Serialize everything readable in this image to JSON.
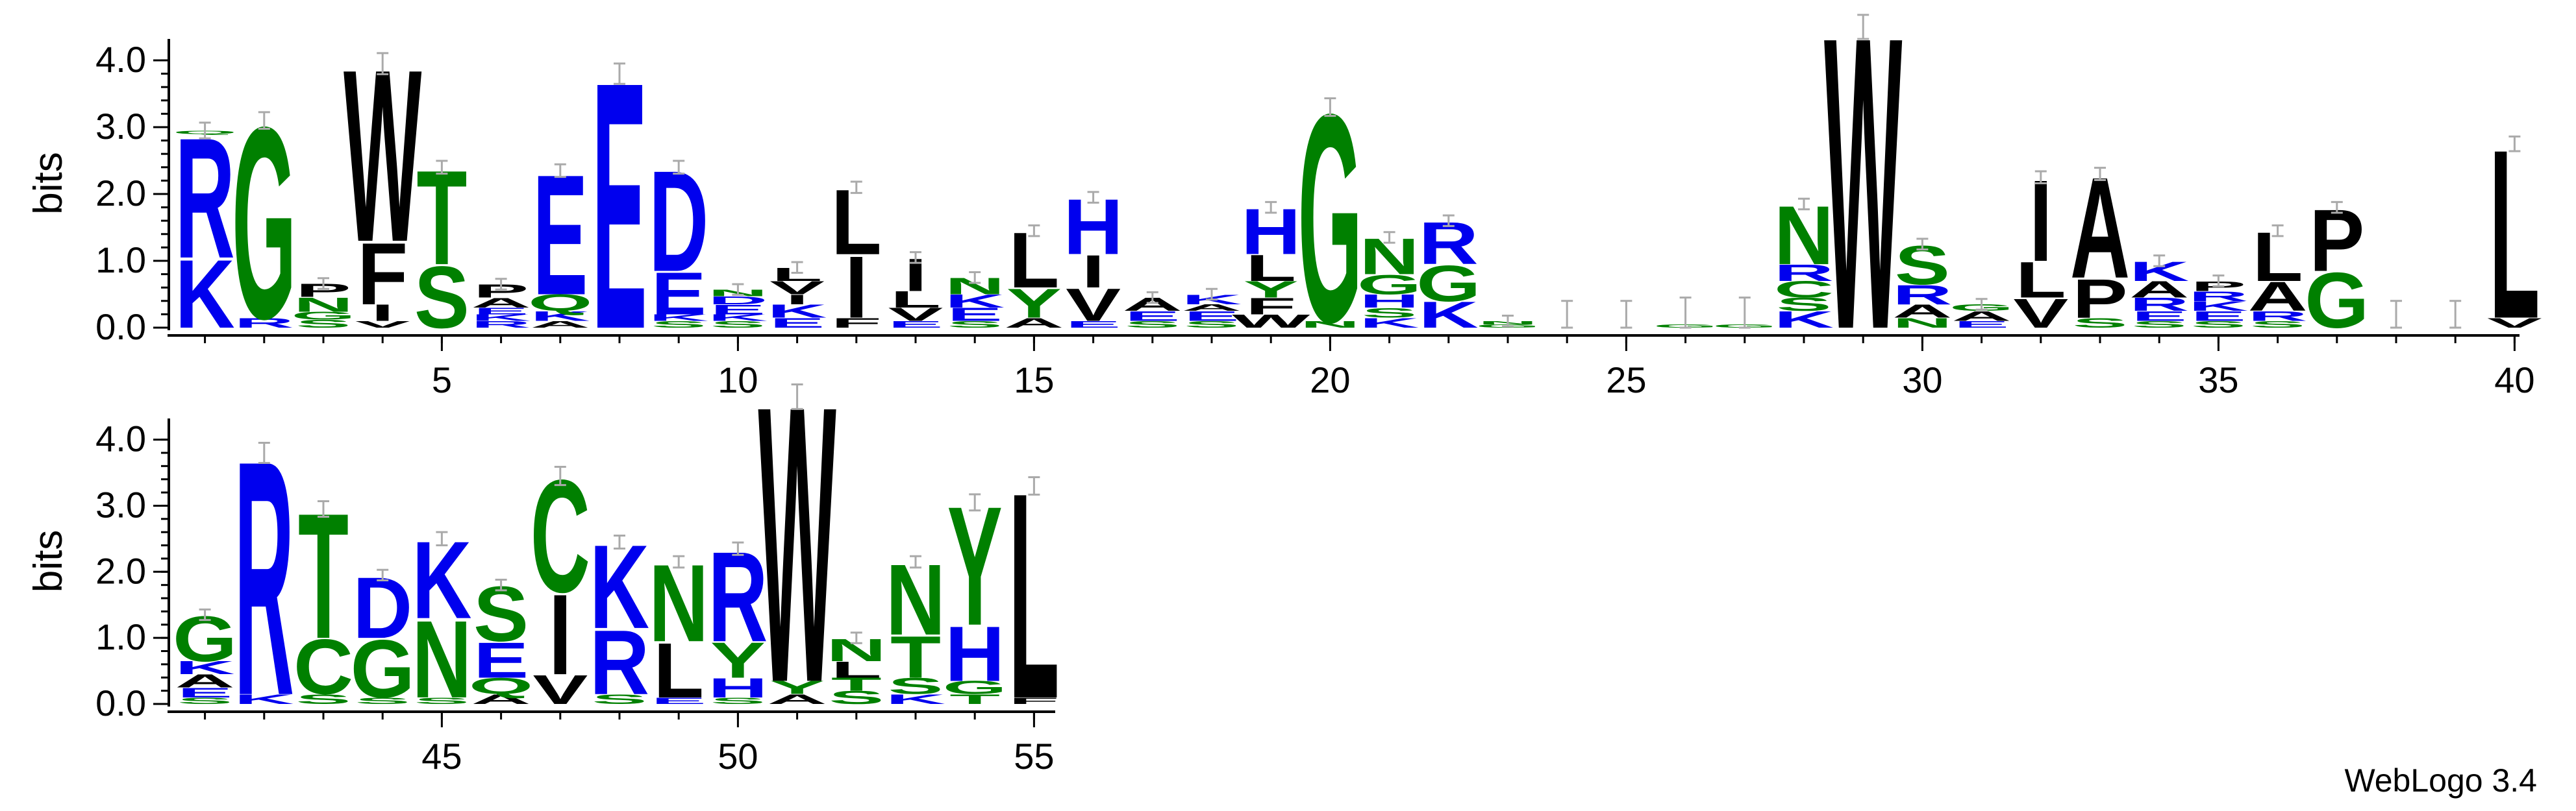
{
  "chart_data": {
    "type": "sequence-logo",
    "ylabel": "bits",
    "ylim": [
      0,
      4.32
    ],
    "yticks": [
      "0.0",
      "1.0",
      "2.0",
      "3.0",
      "4.0"
    ],
    "colors": {
      "basic": "#0000ee",
      "acidic": "#0000ee",
      "polar": "#008000",
      "hydrophobic": "#000000"
    },
    "rows": [
      {
        "positions": [
          1,
          40
        ],
        "xticks": [
          "5",
          "10",
          "15",
          "20",
          "25",
          "30",
          "35",
          "40"
        ],
        "columns": [
          {
            "pos": 1,
            "stack": [
              [
                "K",
                1.05
              ],
              [
                "R",
                1.85
              ],
              [
                "Q",
                0.05
              ]
            ]
          },
          {
            "pos": 2,
            "stack": [
              [
                "R",
                0.15
              ],
              [
                "G",
                2.95
              ]
            ]
          },
          {
            "pos": 3,
            "stack": [
              [
                "S",
                0.12
              ],
              [
                "G",
                0.12
              ],
              [
                "N",
                0.22
              ],
              [
                "P",
                0.2
              ]
            ]
          },
          {
            "pos": 4,
            "stack": [
              [
                "V",
                0.1
              ],
              [
                "I",
                0.25
              ],
              [
                "F",
                0.95
              ],
              [
                "W",
                2.65
              ]
            ]
          },
          {
            "pos": 5,
            "stack": [
              [
                "S",
                0.95
              ],
              [
                "T",
                1.45
              ]
            ]
          },
          {
            "pos": 6,
            "stack": [
              [
                "R",
                0.1
              ],
              [
                "K",
                0.1
              ],
              [
                "E",
                0.1
              ],
              [
                "A",
                0.15
              ],
              [
                "P",
                0.2
              ]
            ]
          },
          {
            "pos": 7,
            "stack": [
              [
                "A",
                0.1
              ],
              [
                "K",
                0.15
              ],
              [
                "Q",
                0.25
              ],
              [
                "E",
                1.85
              ]
            ]
          },
          {
            "pos": 8,
            "stack": [
              [
                "E",
                3.8
              ]
            ]
          },
          {
            "pos": 9,
            "stack": [
              [
                "S",
                0.1
              ],
              [
                "K",
                0.1
              ],
              [
                "E",
                0.65
              ],
              [
                "D",
                1.55
              ]
            ]
          },
          {
            "pos": 10,
            "stack": [
              [
                "S",
                0.1
              ],
              [
                "K",
                0.1
              ],
              [
                "E",
                0.15
              ],
              [
                "D",
                0.12
              ],
              [
                "N",
                0.1
              ]
            ]
          },
          {
            "pos": 11,
            "stack": [
              [
                "E",
                0.15
              ],
              [
                "K",
                0.2
              ],
              [
                "I",
                0.15
              ],
              [
                "V",
                0.2
              ],
              [
                "L",
                0.2
              ]
            ]
          },
          {
            "pos": 12,
            "stack": [
              [
                "F",
                0.15
              ],
              [
                "I",
                0.95
              ],
              [
                "L",
                1.0
              ]
            ]
          },
          {
            "pos": 13,
            "stack": [
              [
                "E",
                0.1
              ],
              [
                "V",
                0.2
              ],
              [
                "L",
                0.25
              ],
              [
                "I",
                0.5
              ]
            ]
          },
          {
            "pos": 14,
            "stack": [
              [
                "S",
                0.1
              ],
              [
                "E",
                0.2
              ],
              [
                "K",
                0.2
              ],
              [
                "N",
                0.25
              ]
            ]
          },
          {
            "pos": 15,
            "stack": [
              [
                "A",
                0.15
              ],
              [
                "Y",
                0.45
              ],
              [
                "L",
                0.85
              ]
            ]
          },
          {
            "pos": 16,
            "stack": [
              [
                "E",
                0.1
              ],
              [
                "V",
                0.5
              ],
              [
                "I",
                0.5
              ],
              [
                "H",
                0.85
              ]
            ]
          },
          {
            "pos": 17,
            "stack": [
              [
                "S",
                0.1
              ],
              [
                "E",
                0.15
              ],
              [
                "A",
                0.2
              ]
            ]
          },
          {
            "pos": 18,
            "stack": [
              [
                "S",
                0.1
              ],
              [
                "E",
                0.15
              ],
              [
                "A",
                0.1
              ],
              [
                "K",
                0.15
              ]
            ]
          },
          {
            "pos": 19,
            "stack": [
              [
                "W",
                0.2
              ],
              [
                "F",
                0.25
              ],
              [
                "Y",
                0.25
              ],
              [
                "L",
                0.4
              ],
              [
                "H",
                0.7
              ]
            ]
          },
          {
            "pos": 20,
            "stack": [
              [
                "N",
                0.1
              ],
              [
                "G",
                3.2
              ]
            ]
          },
          {
            "pos": 21,
            "stack": [
              [
                "K",
                0.15
              ],
              [
                "S",
                0.15
              ],
              [
                "H",
                0.2
              ],
              [
                "G",
                0.3
              ],
              [
                "N",
                0.55
              ]
            ]
          },
          {
            "pos": 22,
            "stack": [
              [
                "K",
                0.4
              ],
              [
                "G",
                0.55
              ],
              [
                "R",
                0.65
              ]
            ]
          },
          {
            "pos": 23,
            "stack": [
              [
                "G",
                0.05
              ],
              [
                "N",
                0.05
              ]
            ]
          },
          {
            "pos": 24,
            "stack": []
          },
          {
            "pos": 25,
            "stack": []
          },
          {
            "pos": 26,
            "stack": [
              [
                "G",
                0.05
              ]
            ]
          },
          {
            "pos": 27,
            "stack": [
              [
                "G",
                0.05
              ]
            ]
          },
          {
            "pos": 28,
            "stack": [
              [
                "K",
                0.25
              ],
              [
                "S",
                0.2
              ],
              [
                "C",
                0.25
              ],
              [
                "R",
                0.25
              ],
              [
                "N",
                0.9
              ]
            ]
          },
          {
            "pos": 29,
            "stack": [
              [
                "W",
                4.5
              ]
            ]
          },
          {
            "pos": 30,
            "stack": [
              [
                "N",
                0.15
              ],
              [
                "A",
                0.2
              ],
              [
                "R",
                0.3
              ],
              [
                "S",
                0.6
              ]
            ]
          },
          {
            "pos": 31,
            "stack": [
              [
                "E",
                0.1
              ],
              [
                "A",
                0.15
              ],
              [
                "G",
                0.1
              ]
            ]
          },
          {
            "pos": 32,
            "stack": [
              [
                "V",
                0.45
              ],
              [
                "L",
                0.55
              ],
              [
                "I",
                1.25
              ]
            ]
          },
          {
            "pos": 33,
            "stack": [
              [
                "S",
                0.15
              ],
              [
                "P",
                0.6
              ],
              [
                "A",
                1.55
              ]
            ]
          },
          {
            "pos": 34,
            "stack": [
              [
                "S",
                0.1
              ],
              [
                "E",
                0.15
              ],
              [
                "R",
                0.2
              ],
              [
                "A",
                0.25
              ],
              [
                "K",
                0.3
              ]
            ]
          },
          {
            "pos": 35,
            "stack": [
              [
                "S",
                0.1
              ],
              [
                "E",
                0.15
              ],
              [
                "K",
                0.15
              ],
              [
                "R",
                0.15
              ],
              [
                "P",
                0.15
              ]
            ]
          },
          {
            "pos": 36,
            "stack": [
              [
                "S",
                0.1
              ],
              [
                "R",
                0.15
              ],
              [
                "A",
                0.45
              ],
              [
                "L",
                0.75
              ]
            ]
          },
          {
            "pos": 37,
            "stack": [
              [
                "G",
                0.85
              ],
              [
                "P",
                0.95
              ]
            ]
          },
          {
            "pos": 38,
            "stack": []
          },
          {
            "pos": 39,
            "stack": []
          },
          {
            "pos": 40,
            "stack": [
              [
                "V",
                0.15
              ],
              [
                "L",
                2.6
              ]
            ]
          }
        ]
      },
      {
        "positions": [
          41,
          55
        ],
        "xticks": [
          "45",
          "50",
          "55"
        ],
        "columns": [
          {
            "pos": 41,
            "stack": [
              [
                "S",
                0.1
              ],
              [
                "E",
                0.15
              ],
              [
                "A",
                0.2
              ],
              [
                "K",
                0.2
              ],
              [
                "G",
                0.7
              ]
            ]
          },
          {
            "pos": 42,
            "stack": [
              [
                "K",
                0.15
              ],
              [
                "R",
                3.65
              ]
            ]
          },
          {
            "pos": 43,
            "stack": [
              [
                "S",
                0.15
              ],
              [
                "C",
                0.85
              ],
              [
                "T",
                1.95
              ]
            ]
          },
          {
            "pos": 44,
            "stack": [
              [
                "S",
                0.1
              ],
              [
                "G",
                0.9
              ],
              [
                "D",
                0.95
              ]
            ]
          },
          {
            "pos": 45,
            "stack": [
              [
                "S",
                0.1
              ],
              [
                "N",
                1.2
              ],
              [
                "K",
                1.2
              ]
            ]
          },
          {
            "pos": 46,
            "stack": [
              [
                "A",
                0.15
              ],
              [
                "Q",
                0.25
              ],
              [
                "E",
                0.55
              ],
              [
                "S",
                0.85
              ]
            ]
          },
          {
            "pos": 47,
            "stack": [
              [
                "V",
                0.45
              ],
              [
                "I",
                1.25
              ],
              [
                "C",
                1.75
              ]
            ]
          },
          {
            "pos": 48,
            "stack": [
              [
                "S",
                0.15
              ],
              [
                "R",
                1.0
              ],
              [
                "K",
                1.3
              ]
            ]
          },
          {
            "pos": 49,
            "stack": [
              [
                "E",
                0.1
              ],
              [
                "L",
                0.85
              ],
              [
                "N",
                1.2
              ]
            ]
          },
          {
            "pos": 50,
            "stack": [
              [
                "S",
                0.1
              ],
              [
                "H",
                0.3
              ],
              [
                "Y",
                0.55
              ],
              [
                "R",
                1.4
              ]
            ]
          },
          {
            "pos": 51,
            "stack": [
              [
                "A",
                0.15
              ],
              [
                "Y",
                0.2
              ],
              [
                "W",
                4.3
              ]
            ]
          },
          {
            "pos": 52,
            "stack": [
              [
                "S",
                0.2
              ],
              [
                "T",
                0.2
              ],
              [
                "L",
                0.25
              ],
              [
                "N",
                0.35
              ]
            ]
          },
          {
            "pos": 53,
            "stack": [
              [
                "K",
                0.15
              ],
              [
                "S",
                0.25
              ],
              [
                "T",
                0.65
              ],
              [
                "N",
                1.1
              ]
            ]
          },
          {
            "pos": 54,
            "stack": [
              [
                "T",
                0.15
              ],
              [
                "G",
                0.2
              ],
              [
                "H",
                0.85
              ],
              [
                "Y",
                1.85
              ]
            ]
          },
          {
            "pos": 55,
            "stack": [
              [
                "F",
                0.1
              ],
              [
                "L",
                3.2
              ]
            ]
          }
        ]
      }
    ]
  },
  "footer": {
    "credit": "WebLogo 3.4"
  }
}
